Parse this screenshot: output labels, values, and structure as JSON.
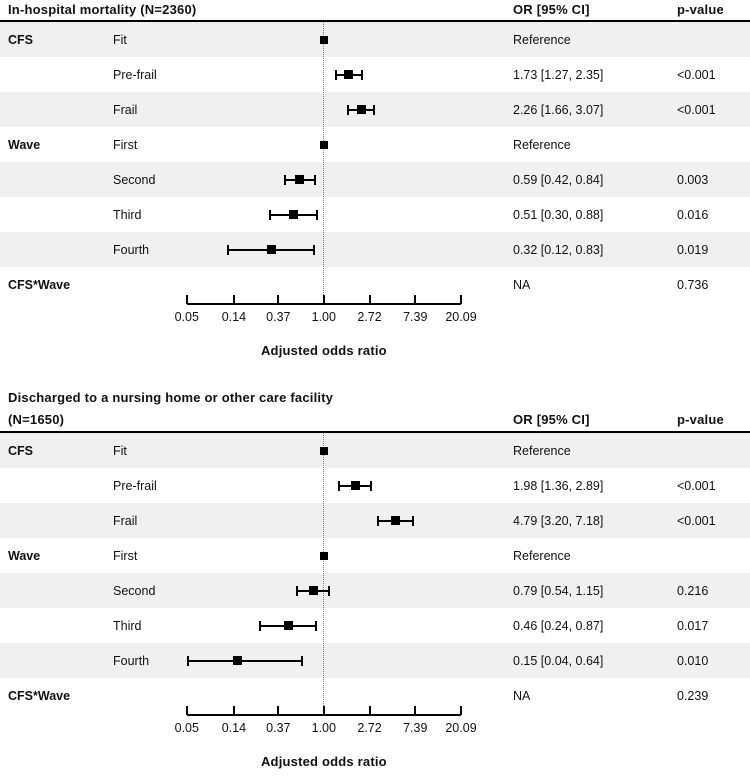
{
  "figure_title": "Forest plots of adjusted odds ratios",
  "axis": {
    "label": "Adjusted odds ratio",
    "scale": "log",
    "tick_labels": [
      "0.05",
      "0.14",
      "0.37",
      "1.00",
      "2.72",
      "7.39",
      "20.09"
    ],
    "tick_values": [
      0.05,
      0.14,
      0.37,
      1.0,
      2.72,
      7.39,
      20.09
    ],
    "range": [
      0.05,
      20.09
    ],
    "reference_line": 1.0
  },
  "columns": {
    "or_header": "OR [95% CI]",
    "p_header": "p-value"
  },
  "chart_data": [
    {
      "type": "forest",
      "title": "In-hospital mortality (N=2360)",
      "title_lines": [
        "In-hospital mortality (N=2360)"
      ],
      "xlabel": "Adjusted odds ratio",
      "x_scale": "log",
      "xlim": [
        0.05,
        20.09
      ],
      "x_ticks": [
        0.05,
        0.14,
        0.37,
        1.0,
        2.72,
        7.39,
        20.09
      ],
      "reference_line": 1.0,
      "or_header": "OR [95% CI]",
      "p_header": "p-value",
      "rows": [
        {
          "group": "CFS",
          "label": "Fit",
          "estimate": 1.0,
          "ci": null,
          "or_text": "Reference",
          "p_text": "",
          "reference": true
        },
        {
          "group": "",
          "label": "Pre-frail",
          "estimate": 1.73,
          "ci": [
            1.27,
            2.35
          ],
          "or_text": "1.73 [1.27, 2.35]",
          "p_text": "<0.001"
        },
        {
          "group": "",
          "label": "Frail",
          "estimate": 2.26,
          "ci": [
            1.66,
            3.07
          ],
          "or_text": "2.26 [1.66, 3.07]",
          "p_text": "<0.001"
        },
        {
          "group": "Wave",
          "label": "First",
          "estimate": 1.0,
          "ci": null,
          "or_text": "Reference",
          "p_text": "",
          "reference": true
        },
        {
          "group": "",
          "label": "Second",
          "estimate": 0.59,
          "ci": [
            0.42,
            0.84
          ],
          "or_text": "0.59 [0.42, 0.84]",
          "p_text": "0.003"
        },
        {
          "group": "",
          "label": "Third",
          "estimate": 0.51,
          "ci": [
            0.3,
            0.88
          ],
          "or_text": "0.51 [0.30, 0.88]",
          "p_text": "0.016"
        },
        {
          "group": "",
          "label": "Fourth",
          "estimate": 0.32,
          "ci": [
            0.12,
            0.83
          ],
          "or_text": "0.32 [0.12, 0.83]",
          "p_text": "0.019"
        },
        {
          "group": "CFS*Wave",
          "label": "",
          "estimate": null,
          "ci": null,
          "or_text": "NA",
          "p_text": "0.736"
        }
      ]
    },
    {
      "type": "forest",
      "title": "Discharged to a nursing home or other care facility (N=1650)",
      "title_lines": [
        "Discharged to a nursing home or other care facility",
        "(N=1650)"
      ],
      "xlabel": "Adjusted odds ratio",
      "x_scale": "log",
      "xlim": [
        0.05,
        20.09
      ],
      "x_ticks": [
        0.05,
        0.14,
        0.37,
        1.0,
        2.72,
        7.39,
        20.09
      ],
      "reference_line": 1.0,
      "or_header": "OR [95% CI]",
      "p_header": "p-value",
      "rows": [
        {
          "group": "CFS",
          "label": "Fit",
          "estimate": 1.0,
          "ci": null,
          "or_text": "Reference",
          "p_text": "",
          "reference": true
        },
        {
          "group": "",
          "label": "Pre-frail",
          "estimate": 1.98,
          "ci": [
            1.36,
            2.89
          ],
          "or_text": "1.98 [1.36, 2.89]",
          "p_text": "<0.001"
        },
        {
          "group": "",
          "label": "Frail",
          "estimate": 4.79,
          "ci": [
            3.2,
            7.18
          ],
          "or_text": "4.79 [3.20, 7.18]",
          "p_text": "<0.001"
        },
        {
          "group": "Wave",
          "label": "First",
          "estimate": 1.0,
          "ci": null,
          "or_text": "Reference",
          "p_text": "",
          "reference": true
        },
        {
          "group": "",
          "label": "Second",
          "estimate": 0.79,
          "ci": [
            0.54,
            1.15
          ],
          "or_text": "0.79 [0.54, 1.15]",
          "p_text": "0.216"
        },
        {
          "group": "",
          "label": "Third",
          "estimate": 0.46,
          "ci": [
            0.24,
            0.87
          ],
          "or_text": "0.46 [0.24, 0.87]",
          "p_text": "0.017"
        },
        {
          "group": "",
          "label": "Fourth",
          "estimate": 0.15,
          "ci": [
            0.04,
            0.64
          ],
          "or_text": "0.15 [0.04, 0.64]",
          "p_text": "0.010"
        },
        {
          "group": "CFS*Wave",
          "label": "",
          "estimate": null,
          "ci": null,
          "or_text": "NA",
          "p_text": "0.239"
        }
      ]
    }
  ]
}
